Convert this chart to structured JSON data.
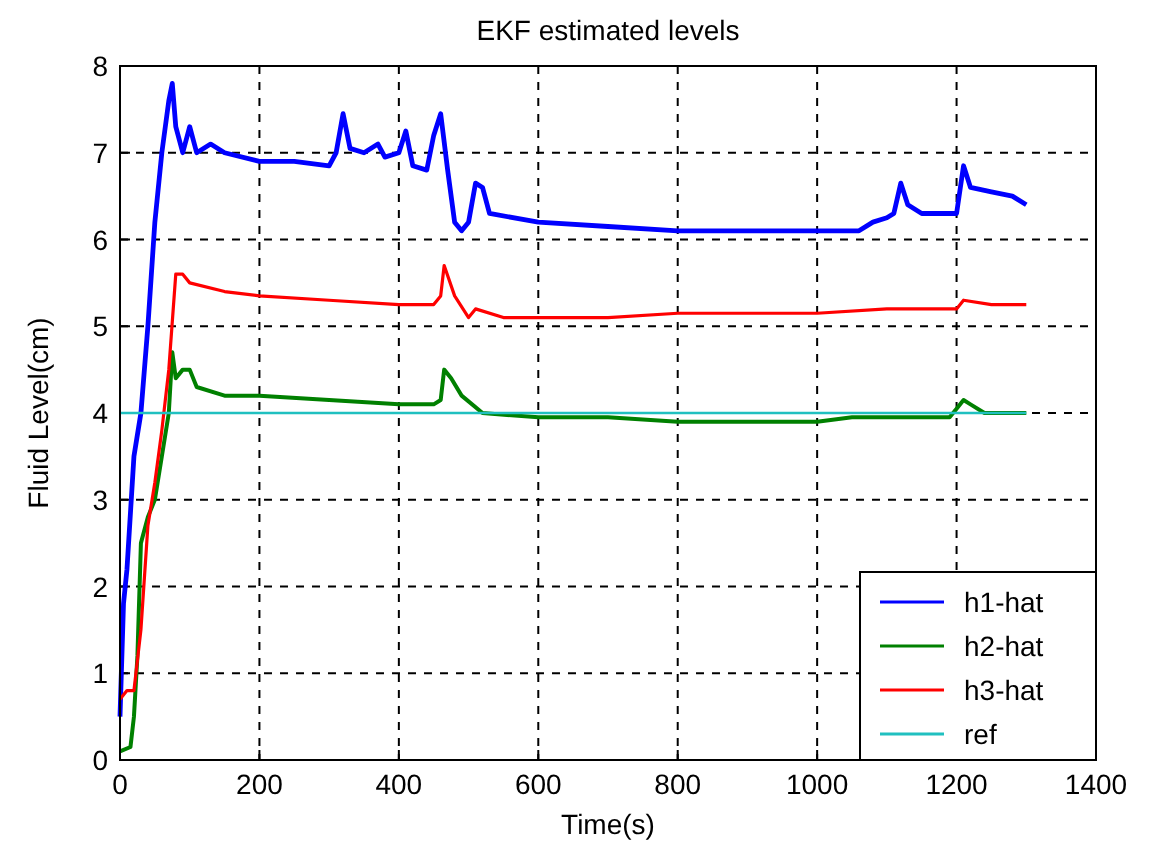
{
  "chart_data": {
    "type": "line",
    "title": "EKF estimated levels",
    "xlabel": "Time(s)",
    "ylabel": "Fluid Level(cm)",
    "xlim": [
      0,
      1400
    ],
    "xticks": [
      0,
      200,
      400,
      600,
      800,
      1000,
      1200,
      1400
    ],
    "ylim": [
      0,
      8
    ],
    "yticks": [
      0,
      1,
      2,
      3,
      4,
      5,
      6,
      7,
      8
    ],
    "grid": true,
    "legend": "bottom right",
    "line_style": "solid",
    "series": [
      {
        "name": "h1-hat",
        "color": "#0000ff",
        "x": [
          0,
          5,
          10,
          20,
          30,
          40,
          50,
          60,
          70,
          75,
          80,
          90,
          100,
          110,
          130,
          150,
          200,
          250,
          300,
          310,
          320,
          330,
          350,
          370,
          380,
          400,
          410,
          420,
          440,
          450,
          460,
          470,
          480,
          490,
          500,
          510,
          520,
          530,
          600,
          700,
          800,
          900,
          1000,
          1060,
          1080,
          1100,
          1110,
          1120,
          1130,
          1150,
          1180,
          1200,
          1210,
          1220,
          1250,
          1280,
          1300
        ],
        "values": [
          0.5,
          1.8,
          2.2,
          3.5,
          4,
          5,
          6.2,
          7,
          7.6,
          7.8,
          7.3,
          7.0,
          7.3,
          7.0,
          7.1,
          7.0,
          6.9,
          6.9,
          6.85,
          7.0,
          7.45,
          7.05,
          7.0,
          7.1,
          6.95,
          7.0,
          7.25,
          6.85,
          6.8,
          7.2,
          7.45,
          6.8,
          6.2,
          6.1,
          6.2,
          6.65,
          6.6,
          6.3,
          6.2,
          6.15,
          6.1,
          6.1,
          6.1,
          6.1,
          6.2,
          6.25,
          6.3,
          6.65,
          6.4,
          6.3,
          6.3,
          6.3,
          6.85,
          6.6,
          6.55,
          6.5,
          6.4
        ]
      },
      {
        "name": "h2-hat",
        "color": "#008000",
        "x": [
          0,
          15,
          20,
          25,
          30,
          40,
          50,
          60,
          70,
          75,
          80,
          90,
          100,
          110,
          150,
          200,
          300,
          400,
          450,
          460,
          465,
          475,
          490,
          520,
          600,
          700,
          800,
          900,
          1000,
          1050,
          1100,
          1190,
          1200,
          1210,
          1220,
          1240,
          1300
        ],
        "values": [
          0.1,
          0.15,
          0.5,
          1.2,
          2.5,
          2.8,
          3.0,
          3.5,
          4.0,
          4.7,
          4.4,
          4.5,
          4.5,
          4.3,
          4.2,
          4.2,
          4.15,
          4.1,
          4.1,
          4.15,
          4.5,
          4.4,
          4.2,
          4.0,
          3.95,
          3.95,
          3.9,
          3.9,
          3.9,
          3.95,
          3.95,
          3.95,
          4.05,
          4.15,
          4.1,
          4.0,
          4.0
        ]
      },
      {
        "name": "h3-hat",
        "color": "#ff0000",
        "x": [
          0,
          10,
          20,
          30,
          40,
          50,
          60,
          70,
          80,
          90,
          100,
          150,
          200,
          300,
          400,
          450,
          460,
          465,
          480,
          500,
          510,
          550,
          700,
          800,
          900,
          1000,
          1100,
          1200,
          1210,
          1250,
          1300
        ],
        "values": [
          0.7,
          0.8,
          0.8,
          1.5,
          2.7,
          3.2,
          3.8,
          4.5,
          5.6,
          5.6,
          5.5,
          5.4,
          5.35,
          5.3,
          5.25,
          5.25,
          5.35,
          5.7,
          5.35,
          5.1,
          5.2,
          5.1,
          5.1,
          5.15,
          5.15,
          5.15,
          5.2,
          5.2,
          5.3,
          5.25,
          5.25
        ]
      },
      {
        "name": "ref",
        "color": "#20c0c0",
        "x": [
          0,
          1300
        ],
        "values": [
          4,
          4
        ]
      }
    ]
  }
}
